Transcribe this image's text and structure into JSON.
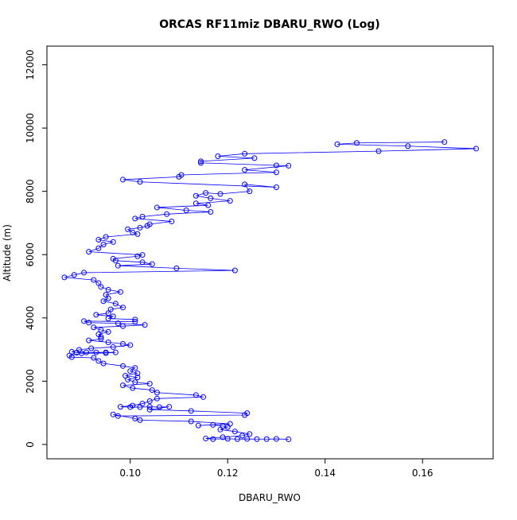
{
  "chart_data": {
    "type": "scatter-line",
    "title": "ORCAS RF11miz DBARU_RWO (Log)",
    "x_label": "DBARU_RWO",
    "y_label": "Altitude (m)",
    "xlim": [
      0.0829,
      0.1745
    ],
    "ylim": [
      -452,
      12590
    ],
    "xticks": [
      {
        "value": 0.1,
        "label": "0.10"
      },
      {
        "value": 0.12,
        "label": "0.12"
      },
      {
        "value": 0.14,
        "label": "0.14"
      },
      {
        "value": 0.16,
        "label": "0.16"
      }
    ],
    "yticks": [
      0,
      2000,
      4000,
      6000,
      8000,
      10000,
      12000
    ],
    "series": [
      {
        "color": "#0000ff",
        "x": [
          0.1645,
          0.1465,
          0.1425,
          0.157,
          0.171,
          0.151,
          0.1235,
          0.118,
          0.1255,
          0.1145,
          0.1145,
          0.13,
          0.1325,
          0.1235,
          0.13,
          0.1105,
          0.11,
          0.0985,
          0.102,
          0.13,
          0.1235,
          0.1245,
          0.1185,
          0.1155,
          0.1135,
          0.1165,
          0.1205,
          0.1135,
          0.116,
          0.1055,
          0.1115,
          0.1165,
          0.1075,
          0.1025,
          0.101,
          0.1085,
          0.104,
          0.1035,
          0.102,
          0.0995,
          0.1005,
          0.1015,
          0.095,
          0.0935,
          0.0965,
          0.0945,
          0.0935,
          0.0915,
          0.1025,
          0.1015,
          0.0965,
          0.097,
          0.1025,
          0.1045,
          0.0975,
          0.1095,
          0.1215,
          0.0905,
          0.0885,
          0.0865,
          0.0925,
          0.0935,
          0.094,
          0.0955,
          0.098,
          0.095,
          0.0955,
          0.0945,
          0.097,
          0.0985,
          0.096,
          0.0955,
          0.093,
          0.0965,
          0.0955,
          0.101,
          0.101,
          0.0905,
          0.0915,
          0.0975,
          0.103,
          0.0985,
          0.0925,
          0.094,
          0.0955,
          0.0935,
          0.094,
          0.094,
          0.0915,
          0.0955,
          0.0985,
          0.1,
          0.0965,
          0.092,
          0.0895,
          0.088,
          0.089,
          0.091,
          0.093,
          0.095,
          0.097,
          0.095,
          0.09,
          0.0875,
          0.088,
          0.0925,
          0.0935,
          0.0945,
          0.0985,
          0.101,
          0.1,
          0.1015,
          0.099,
          0.1015,
          0.0995,
          0.101,
          0.104,
          0.0985,
          0.1005,
          0.1045,
          0.1055,
          0.1135,
          0.115,
          0.1055,
          0.104,
          0.1025,
          0.1005,
          0.098,
          0.1,
          0.102,
          0.104,
          0.106,
          0.108,
          0.104,
          0.1125,
          0.124,
          0.1235,
          0.0975,
          0.0965,
          0.101,
          0.102,
          0.1125,
          0.1205,
          0.114,
          0.117,
          0.119,
          0.12,
          0.1185,
          0.1215,
          0.1245,
          0.123,
          0.119,
          0.1155,
          0.117,
          0.12,
          0.122,
          0.124,
          0.126,
          0.128,
          0.13,
          0.1325
        ],
        "values": [
          9560,
          9530,
          9490,
          9430,
          9350,
          9270,
          9190,
          9110,
          9050,
          8950,
          8900,
          8820,
          8810,
          8680,
          8600,
          8520,
          8460,
          8370,
          8300,
          8130,
          8220,
          8000,
          7920,
          7950,
          7860,
          7780,
          7700,
          7620,
          7560,
          7490,
          7400,
          7350,
          7280,
          7200,
          7140,
          7050,
          6960,
          6910,
          6850,
          6800,
          6700,
          6650,
          6560,
          6470,
          6400,
          6320,
          6200,
          6090,
          5990,
          5950,
          5870,
          5810,
          5760,
          5700,
          5650,
          5570,
          5500,
          5430,
          5360,
          5280,
          5200,
          5100,
          4980,
          4890,
          4820,
          4730,
          4620,
          4530,
          4450,
          4330,
          4270,
          4150,
          4100,
          4050,
          3980,
          3950,
          3880,
          3900,
          3850,
          3830,
          3780,
          3740,
          3700,
          3620,
          3560,
          3480,
          3400,
          3340,
          3290,
          3230,
          3180,
          3140,
          3080,
          3040,
          2990,
          2930,
          2900,
          2910,
          2910,
          2910,
          2910,
          2890,
          2880,
          2810,
          2760,
          2740,
          2640,
          2560,
          2480,
          2420,
          2320,
          2250,
          2170,
          2120,
          2050,
          1970,
          1920,
          1870,
          1780,
          1720,
          1640,
          1560,
          1500,
          1450,
          1370,
          1290,
          1230,
          1190,
          1180,
          1180,
          1190,
          1180,
          1190,
          1100,
          1060,
          990,
          930,
          900,
          950,
          820,
          770,
          730,
          650,
          600,
          620,
          580,
          550,
          470,
          410,
          330,
          280,
          230,
          190,
          170,
          180,
          170,
          175,
          170,
          170,
          175,
          165
        ]
      }
    ]
  }
}
